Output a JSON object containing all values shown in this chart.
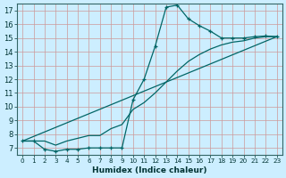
{
  "xlabel": "Humidex (Indice chaleur)",
  "bg_color": "#cceeff",
  "grid_major_color": "#cc9999",
  "grid_minor_color": "#ddbbbb",
  "line_color": "#006666",
  "xlim": [
    -0.5,
    23.5
  ],
  "ylim": [
    6.5,
    17.5
  ],
  "yticks": [
    7,
    8,
    9,
    10,
    11,
    12,
    13,
    14,
    15,
    16,
    17
  ],
  "xticks": [
    0,
    1,
    2,
    3,
    4,
    5,
    6,
    7,
    8,
    9,
    10,
    11,
    12,
    13,
    14,
    15,
    16,
    17,
    18,
    19,
    20,
    21,
    22,
    23
  ],
  "curve_x": [
    0,
    1,
    2,
    3,
    4,
    5,
    6,
    7,
    8,
    9,
    10,
    11,
    12,
    13,
    14,
    15,
    16,
    17,
    18,
    19,
    20,
    21,
    22,
    23
  ],
  "curve_y": [
    7.5,
    7.5,
    6.9,
    6.75,
    6.9,
    6.9,
    7.0,
    7.0,
    7.0,
    7.0,
    10.5,
    12.0,
    14.4,
    17.25,
    17.4,
    16.4,
    15.9,
    15.5,
    15.0,
    15.0,
    15.0,
    15.1,
    15.15,
    15.1
  ],
  "line2_x": [
    0,
    23
  ],
  "line2_y": [
    7.5,
    15.1
  ],
  "line3_x": [
    0,
    2,
    3,
    4,
    5,
    6,
    7,
    8,
    9,
    10,
    11,
    12,
    13,
    14,
    15,
    16,
    17,
    18,
    19,
    20,
    21,
    22,
    23
  ],
  "line3_y": [
    7.5,
    7.5,
    7.2,
    7.5,
    7.7,
    7.9,
    7.9,
    8.4,
    8.7,
    9.8,
    10.3,
    11.0,
    11.8,
    12.6,
    13.3,
    13.8,
    14.2,
    14.5,
    14.7,
    14.8,
    15.0,
    15.1,
    15.1
  ]
}
